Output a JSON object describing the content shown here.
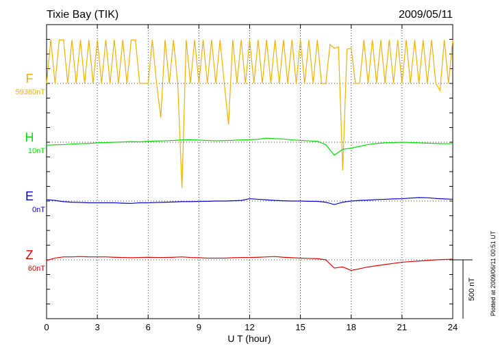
{
  "chart_data": {
    "type": "line",
    "title": "Tixie Bay (TIK)",
    "date": "2009/05/11",
    "xlabel": "U T (hour)",
    "footnote": "Plotted at 2009/06/11 00:51 UT",
    "xlim": [
      0,
      24
    ],
    "xticks": [
      0,
      3,
      6,
      9,
      12,
      15,
      18,
      21,
      24
    ],
    "grid": true,
    "scale_bar": {
      "value": 500,
      "label": "500 nT"
    },
    "series": [
      {
        "name": "F",
        "baseline_label": "59380nT",
        "color": "#f0b000",
        "x": [
          0,
          0.25,
          0.5,
          0.75,
          1,
          1.25,
          1.5,
          1.75,
          2,
          2.25,
          2.5,
          2.75,
          3,
          3.25,
          3.5,
          3.75,
          4,
          4.25,
          4.5,
          4.75,
          5,
          5.25,
          5.5,
          5.75,
          6,
          6.25,
          6.5,
          6.75,
          7,
          7.25,
          7.5,
          7.75,
          8,
          8.25,
          8.5,
          8.75,
          9,
          9.25,
          9.5,
          9.75,
          10,
          10.25,
          10.5,
          10.75,
          11,
          11.25,
          11.5,
          11.75,
          12,
          12.25,
          12.5,
          12.75,
          13,
          13.25,
          13.5,
          13.75,
          14,
          14.25,
          14.5,
          14.75,
          15,
          15.25,
          15.5,
          15.75,
          16,
          16.25,
          16.5,
          16.75,
          17,
          17.25,
          17.5,
          17.75,
          18,
          18.25,
          18.5,
          18.75,
          19,
          19.25,
          19.5,
          19.75,
          20,
          20.25,
          20.5,
          20.75,
          21,
          21.25,
          21.5,
          21.75,
          22,
          22.25,
          22.5,
          22.75,
          23,
          23.25,
          23.5,
          23.75,
          24
        ],
        "values": [
          0,
          370,
          0,
          370,
          370,
          0,
          370,
          0,
          370,
          0,
          370,
          0,
          370,
          0,
          370,
          0,
          370,
          0,
          370,
          0,
          370,
          370,
          0,
          0,
          0,
          370,
          0,
          -290,
          370,
          0,
          370,
          0,
          -890,
          370,
          0,
          370,
          0,
          370,
          0,
          370,
          0,
          370,
          0,
          -350,
          370,
          0,
          370,
          0,
          370,
          0,
          370,
          0,
          370,
          0,
          370,
          0,
          370,
          0,
          370,
          0,
          370,
          0,
          370,
          0,
          370,
          0,
          0,
          330,
          300,
          310,
          -740,
          290,
          300,
          0,
          0,
          370,
          0,
          370,
          0,
          370,
          0,
          370,
          0,
          370,
          0,
          370,
          0,
          370,
          0,
          370,
          0,
          370,
          0,
          -60,
          370,
          0,
          370
        ]
      },
      {
        "name": "H",
        "baseline_label": "10nT",
        "color": "#00dd00",
        "x": [
          0,
          0.5,
          1,
          1.5,
          2,
          2.5,
          3,
          3.5,
          4,
          4.5,
          5,
          5.5,
          6,
          6.5,
          7,
          7.5,
          8,
          8.5,
          9,
          9.5,
          10,
          10.5,
          11,
          11.5,
          12,
          12.5,
          13,
          13.5,
          14,
          14.5,
          15,
          15.5,
          16,
          16.5,
          17,
          17.5,
          18,
          18.5,
          19,
          19.5,
          20,
          20.5,
          21,
          21.5,
          22,
          22.5,
          23,
          23.5,
          24
        ],
        "values": [
          -25,
          -22,
          -20,
          -15,
          -12,
          -10,
          -5,
          -3,
          0,
          2,
          5,
          3,
          8,
          10,
          12,
          15,
          20,
          22,
          18,
          15,
          12,
          14,
          16,
          20,
          22,
          25,
          35,
          30,
          28,
          20,
          15,
          12,
          8,
          -20,
          -110,
          -60,
          -50,
          -35,
          -20,
          -10,
          -5,
          -3,
          0,
          -2,
          -5,
          -8,
          -10,
          -12,
          -12
        ]
      },
      {
        "name": "E",
        "baseline_label": "0nT",
        "color": "#0000cc",
        "x": [
          0,
          0.5,
          1,
          1.5,
          2,
          2.5,
          3,
          3.5,
          4,
          4.5,
          5,
          5.5,
          6,
          6.5,
          7,
          7.5,
          8,
          8.5,
          9,
          9.5,
          10,
          10.5,
          11,
          11.5,
          12,
          12.5,
          13,
          13.5,
          14,
          14.5,
          15,
          15.5,
          16,
          16.5,
          17,
          17.5,
          18,
          18.5,
          19,
          19.5,
          20,
          20.5,
          21,
          21.5,
          22,
          22.5,
          23,
          23.5,
          24
        ],
        "values": [
          12,
          5,
          -5,
          -10,
          -12,
          -15,
          -15,
          -15,
          -15,
          -18,
          -20,
          -15,
          -15,
          -12,
          -10,
          -8,
          -5,
          -5,
          -3,
          -2,
          0,
          0,
          2,
          5,
          20,
          15,
          10,
          5,
          2,
          0,
          0,
          -2,
          -3,
          -10,
          -30,
          -10,
          0,
          5,
          8,
          12,
          15,
          18,
          20,
          25,
          30,
          28,
          22,
          18,
          15
        ]
      },
      {
        "name": "Z",
        "baseline_label": "60nT",
        "color": "#dd0000",
        "x": [
          0,
          0.5,
          1,
          1.5,
          2,
          2.5,
          3,
          3.5,
          4,
          4.5,
          5,
          5.5,
          6,
          6.5,
          7,
          7.5,
          8,
          8.5,
          9,
          9.5,
          10,
          10.5,
          11,
          11.5,
          12,
          12.5,
          13,
          13.5,
          14,
          14.5,
          15,
          15.5,
          16,
          16.5,
          17,
          17.5,
          18,
          18.5,
          19,
          19.5,
          20,
          20.5,
          21,
          21.5,
          22,
          22.5,
          23,
          23.5,
          24
        ],
        "values": [
          -5,
          15,
          25,
          25,
          28,
          25,
          25,
          25,
          22,
          20,
          18,
          20,
          22,
          20,
          20,
          22,
          25,
          20,
          18,
          15,
          15,
          15,
          18,
          20,
          20,
          22,
          25,
          28,
          22,
          18,
          15,
          12,
          10,
          0,
          -70,
          -60,
          -90,
          -75,
          -60,
          -50,
          -40,
          -30,
          -20,
          -15,
          -10,
          -5,
          0,
          3,
          5
        ]
      }
    ]
  }
}
